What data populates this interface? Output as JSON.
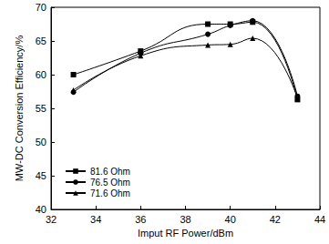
{
  "chart_data": {
    "type": "line",
    "x_label": "Imput RF Power/dBm",
    "y_label": "MW-DC Conversion Efficiency/%",
    "x": [
      33,
      36,
      39,
      40,
      41,
      43
    ],
    "series": [
      {
        "name": "81.6 Ohm",
        "color": "#000000",
        "marker": "square",
        "values": [
          60.0,
          63.5,
          67.5,
          67.5,
          67.8,
          56.3
        ]
      },
      {
        "name": "76.5 Ohm",
        "color": "#000000",
        "marker": "circle",
        "values": [
          57.4,
          63.2,
          66.0,
          67.3,
          68.0,
          56.8
        ]
      },
      {
        "name": "71.6 Ohm",
        "color": "#000000",
        "marker": "triangle",
        "values": [
          57.7,
          62.8,
          64.4,
          64.5,
          65.4,
          56.5
        ]
      }
    ],
    "xlim": [
      32,
      44
    ],
    "xticks": [
      32,
      34,
      36,
      38,
      40,
      42,
      44
    ],
    "ylim": [
      40,
      70
    ],
    "yticks": [
      40,
      45,
      50,
      55,
      60,
      65,
      70
    ],
    "grid": false,
    "legend": "lower left"
  }
}
